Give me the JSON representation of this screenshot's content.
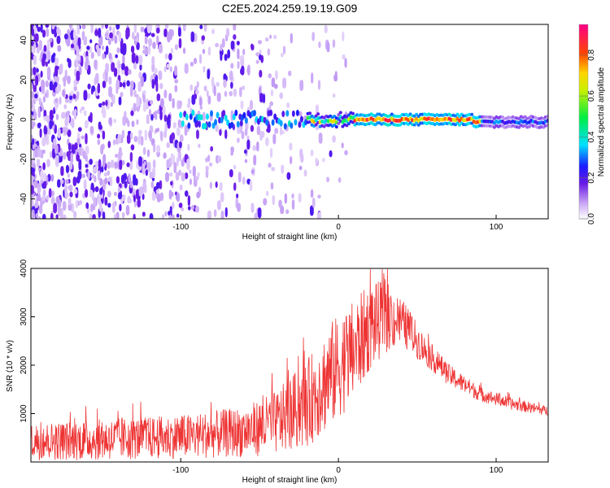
{
  "figure_title": "C2E5.2024.259.19.19.G09",
  "colors": {
    "snr_line": "#ee3333",
    "spectrogram_scatter": "#7a2be0",
    "spectrogram_ridge": "#ff2a1a"
  },
  "chart_data": [
    {
      "type": "heatmap",
      "title": "",
      "xlabel": "Height of straight line (km)",
      "ylabel": "Frequency (Hz)",
      "xlim": [
        -195,
        133
      ],
      "ylim": [
        -50,
        48
      ],
      "xticks": [
        "-100",
        "0",
        "100"
      ],
      "yticks": [
        "40",
        "20",
        "0",
        "-20",
        "-40"
      ],
      "colorbar": {
        "label": "Normalized spectral amplitude",
        "range": [
          0,
          0.95
        ],
        "ticks": [
          "0.0",
          "0.2",
          "0.4",
          "0.6",
          "0.8"
        ],
        "colormap": "rainbow (white-purple-blue-cyan-green-yellow-red-magenta)"
      },
      "features": [
        {
          "region": "x < -100 km",
          "description": "broadband noise across all frequencies",
          "amplitude": 0.05
        },
        {
          "region": "-100 to -20 km",
          "description": "clustered energy near 0 Hz",
          "amplitude": 0.25
        },
        {
          "region": "-20 to 90 km",
          "description": "narrow line at 0 Hz",
          "amplitude": 0.9
        },
        {
          "region": "90 to 133 km",
          "description": "line at 0 Hz weakening",
          "amplitude": 0.25
        }
      ]
    },
    {
      "type": "line",
      "title": "",
      "xlabel": "Height of straight line (km)",
      "ylabel": "SNR (10 * v/v)",
      "xlim": [
        -195,
        133
      ],
      "ylim": [
        0,
        4000
      ],
      "xticks": [
        "-100",
        "0",
        "100"
      ],
      "yticks": [
        "1000",
        "2000",
        "3000",
        "4000"
      ],
      "series": [
        {
          "envelope_x": [
            -195,
            -150,
            -100,
            -60,
            -40,
            -20,
            -5,
            10,
            20,
            30,
            40,
            55,
            70,
            90,
            110,
            133
          ],
          "envelope_mean": [
            420,
            460,
            520,
            620,
            800,
            1200,
            1800,
            2300,
            2800,
            3000,
            2900,
            2300,
            1800,
            1400,
            1200,
            1050
          ],
          "envelope_spread": [
            380,
            420,
            450,
            520,
            650,
            900,
            1100,
            1050,
            900,
            750,
            500,
            300,
            220,
            150,
            120,
            100
          ]
        }
      ]
    }
  ]
}
